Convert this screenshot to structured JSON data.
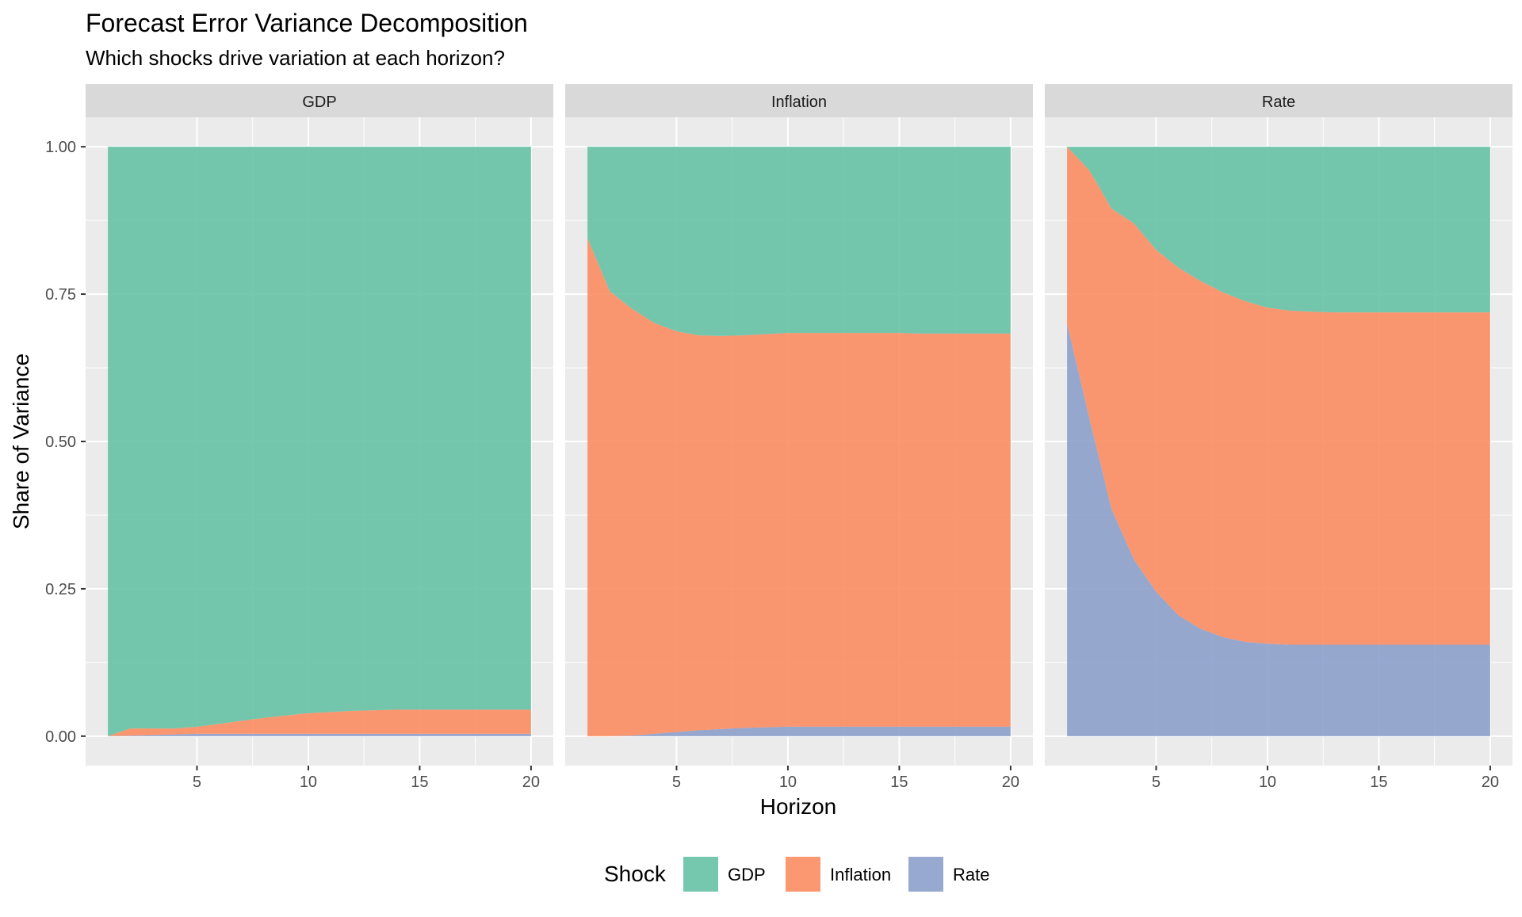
{
  "chart_data": {
    "type": "area",
    "title": "Forecast Error Variance Decomposition",
    "subtitle": "Which shocks drive variation at each horizon?",
    "xlabel": "Horizon",
    "ylabel": "Share of Variance",
    "xlim": [
      0,
      21
    ],
    "ylim": [
      -0.05,
      1.05
    ],
    "x_ticks": [
      5,
      10,
      15,
      20
    ],
    "x_tick_labels": [
      "5",
      "10",
      "15",
      "20"
    ],
    "y_ticks": [
      0,
      0.25,
      0.5,
      0.75,
      1.0
    ],
    "y_tick_labels": [
      "0.00",
      "0.25",
      "0.50",
      "0.75",
      "1.00"
    ],
    "stack_order_bottom_to_top": [
      "Rate",
      "Inflation",
      "GDP"
    ],
    "legend": {
      "title": "Shock",
      "position": "bottom",
      "entries": [
        {
          "name": "GDP",
          "color": "#66C2A5"
        },
        {
          "name": "Inflation",
          "color": "#FC8D62"
        },
        {
          "name": "Rate",
          "color": "#8DA0CB"
        }
      ]
    },
    "x": [
      1,
      2,
      3,
      4,
      5,
      6,
      7,
      8,
      9,
      10,
      11,
      12,
      13,
      14,
      15,
      16,
      17,
      18,
      19,
      20
    ],
    "panels": [
      {
        "name": "GDP",
        "series": [
          {
            "name": "Rate",
            "values": [
              0.0,
              0.001,
              0.002,
              0.003,
              0.004,
              0.004,
              0.004,
              0.004,
              0.004,
              0.004,
              0.004,
              0.004,
              0.004,
              0.004,
              0.004,
              0.004,
              0.004,
              0.004,
              0.004,
              0.004
            ]
          },
          {
            "name": "Inflation",
            "values": [
              0.0,
              0.012,
              0.011,
              0.01,
              0.012,
              0.017,
              0.022,
              0.027,
              0.031,
              0.035,
              0.037,
              0.039,
              0.04,
              0.041,
              0.041,
              0.041,
              0.041,
              0.041,
              0.041,
              0.041
            ]
          },
          {
            "name": "GDP",
            "values": [
              1.0,
              0.987,
              0.987,
              0.987,
              0.984,
              0.979,
              0.974,
              0.969,
              0.965,
              0.961,
              0.959,
              0.957,
              0.956,
              0.955,
              0.955,
              0.955,
              0.955,
              0.955,
              0.955,
              0.955
            ]
          }
        ]
      },
      {
        "name": "Inflation",
        "series": [
          {
            "name": "Rate",
            "values": [
              0.0,
              0.0,
              0.001,
              0.004,
              0.007,
              0.01,
              0.012,
              0.014,
              0.015,
              0.016,
              0.016,
              0.016,
              0.016,
              0.016,
              0.016,
              0.016,
              0.016,
              0.016,
              0.016,
              0.016
            ]
          },
          {
            "name": "Inflation",
            "values": [
              0.845,
              0.755,
              0.724,
              0.697,
              0.68,
              0.67,
              0.667,
              0.666,
              0.667,
              0.668,
              0.668,
              0.668,
              0.668,
              0.668,
              0.668,
              0.667,
              0.667,
              0.667,
              0.667,
              0.667
            ]
          },
          {
            "name": "GDP",
            "values": [
              0.155,
              0.245,
              0.275,
              0.299,
              0.313,
              0.32,
              0.321,
              0.32,
              0.318,
              0.316,
              0.316,
              0.316,
              0.316,
              0.316,
              0.316,
              0.317,
              0.317,
              0.317,
              0.317,
              0.317
            ]
          }
        ]
      },
      {
        "name": "Rate",
        "series": [
          {
            "name": "Rate",
            "values": [
              0.7,
              0.54,
              0.385,
              0.3,
              0.245,
              0.205,
              0.182,
              0.168,
              0.16,
              0.157,
              0.155,
              0.155,
              0.155,
              0.155,
              0.155,
              0.155,
              0.155,
              0.155,
              0.155,
              0.155
            ]
          },
          {
            "name": "Inflation",
            "values": [
              0.3,
              0.42,
              0.51,
              0.57,
              0.58,
              0.59,
              0.59,
              0.585,
              0.578,
              0.57,
              0.567,
              0.565,
              0.564,
              0.564,
              0.564,
              0.564,
              0.564,
              0.564,
              0.564,
              0.564
            ]
          },
          {
            "name": "GDP",
            "values": [
              0.0,
              0.04,
              0.105,
              0.13,
              0.175,
              0.205,
              0.228,
              0.247,
              0.262,
              0.273,
              0.278,
              0.28,
              0.281,
              0.281,
              0.281,
              0.281,
              0.281,
              0.281,
              0.281,
              0.281
            ]
          }
        ]
      }
    ]
  }
}
